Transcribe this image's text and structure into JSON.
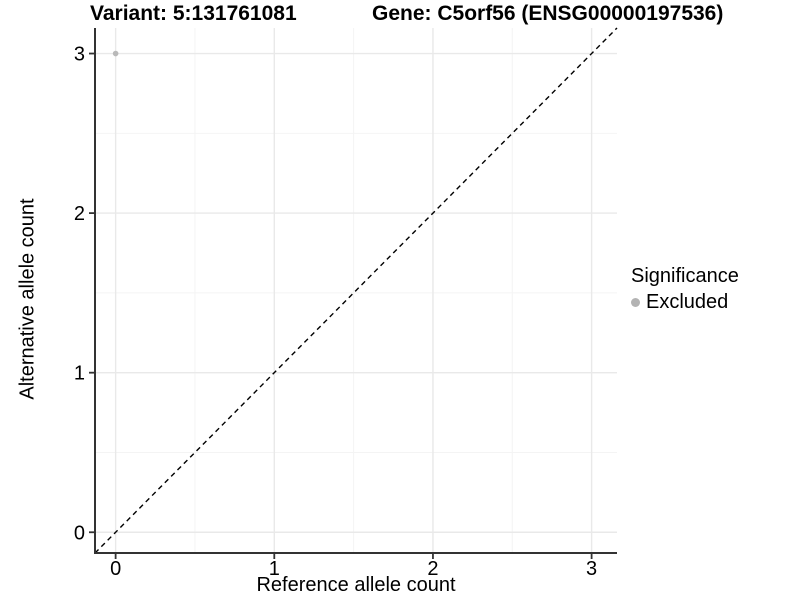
{
  "chart_data": {
    "type": "scatter",
    "title_left": "Variant: 5:131761081",
    "title_right": "Gene: C5orf56 (ENSG00000197536)",
    "xlabel": "Reference allele count",
    "ylabel": "Alternative allele count",
    "xlim": [
      -0.13,
      3.16
    ],
    "ylim": [
      -0.13,
      3.16
    ],
    "x_ticks": [
      0,
      1,
      2,
      3
    ],
    "y_ticks": [
      0,
      1,
      2,
      3
    ],
    "x_minor": [
      0.5,
      1.5,
      2.5
    ],
    "y_minor": [
      0.5,
      1.5,
      2.5
    ],
    "grid": true,
    "identity_line": {
      "style": "dashed",
      "slope": 1,
      "intercept": 0,
      "color": "#000000"
    },
    "series": [
      {
        "name": "Excluded",
        "color": "#b9b9b9",
        "point_radius": 2.8,
        "points": [
          {
            "x": 0,
            "y": 3
          }
        ]
      }
    ],
    "legend": {
      "title": "Significance",
      "position": "right",
      "items": [
        {
          "label": "Excluded",
          "color": "#b3b3b3"
        }
      ]
    },
    "colors": {
      "background": "#ffffff",
      "axis_line": "#333333",
      "grid_major": "#e9e9e9",
      "grid_minor": "#f4f4f4",
      "tick_text": "#000000"
    }
  }
}
